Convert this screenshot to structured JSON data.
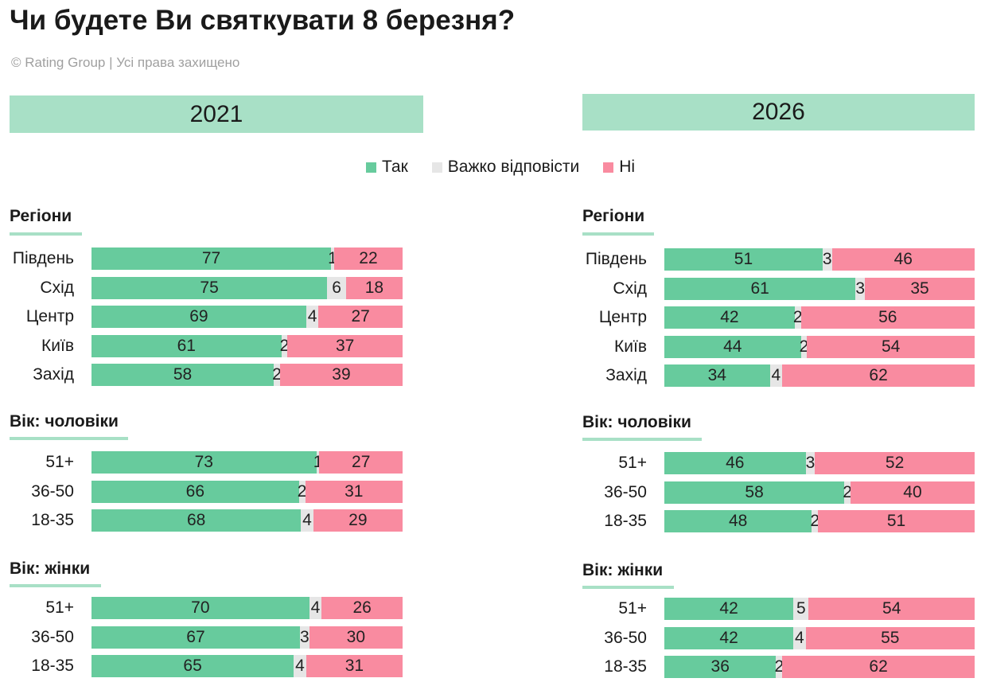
{
  "title": "Чи будете Ви святкувати 8 березня?",
  "subtitle": "© Rating Group | Усі права захищено",
  "colors": {
    "yes": "#67cb9d",
    "hard": "#e6e6e6",
    "no": "#f98ba0",
    "banner": "#a8e0c6"
  },
  "legend": [
    {
      "key": "yes",
      "label": "Так"
    },
    {
      "key": "hard",
      "label": "Важко відповісти"
    },
    {
      "key": "no",
      "label": "Ні"
    }
  ],
  "chart_data": [
    {
      "type": "bar",
      "title": "2021",
      "series_names": [
        "Так",
        "Важко відповісти",
        "Ні"
      ],
      "groups": [
        {
          "name": "Регіони",
          "rows": [
            {
              "label": "Південь",
              "values": [
                77,
                1,
                22
              ]
            },
            {
              "label": "Схід",
              "values": [
                75,
                6,
                18
              ]
            },
            {
              "label": "Центр",
              "values": [
                69,
                4,
                27
              ]
            },
            {
              "label": "Київ",
              "values": [
                61,
                2,
                37
              ]
            },
            {
              "label": "Захід",
              "values": [
                58,
                2,
                39
              ]
            }
          ]
        },
        {
          "name": "Вік: чоловіки",
          "rows": [
            {
              "label": "51+",
              "values": [
                73,
                1,
                27
              ]
            },
            {
              "label": "36-50",
              "values": [
                66,
                2,
                31
              ]
            },
            {
              "label": "18-35",
              "values": [
                68,
                4,
                29
              ]
            }
          ]
        },
        {
          "name": "Вік: жінки",
          "rows": [
            {
              "label": "51+",
              "values": [
                70,
                4,
                26
              ]
            },
            {
              "label": "36-50",
              "values": [
                67,
                3,
                30
              ]
            },
            {
              "label": "18-35",
              "values": [
                65,
                4,
                31
              ]
            }
          ]
        }
      ]
    },
    {
      "type": "bar",
      "title": "2026",
      "series_names": [
        "Так",
        "Важко відповісти",
        "Ні"
      ],
      "groups": [
        {
          "name": "Регіони",
          "rows": [
            {
              "label": "Південь",
              "values": [
                51,
                3,
                46
              ]
            },
            {
              "label": "Схід",
              "values": [
                61,
                3,
                35
              ]
            },
            {
              "label": "Центр",
              "values": [
                42,
                2,
                56
              ]
            },
            {
              "label": "Київ",
              "values": [
                44,
                2,
                54
              ]
            },
            {
              "label": "Захід",
              "values": [
                34,
                4,
                62
              ]
            }
          ]
        },
        {
          "name": "Вік: чоловіки",
          "rows": [
            {
              "label": "51+",
              "values": [
                46,
                3,
                52
              ]
            },
            {
              "label": "36-50",
              "values": [
                58,
                2,
                40
              ]
            },
            {
              "label": "18-35",
              "values": [
                48,
                2,
                51
              ]
            }
          ]
        },
        {
          "name": "Вік: жінки",
          "rows": [
            {
              "label": "51+",
              "values": [
                42,
                5,
                54
              ]
            },
            {
              "label": "36-50",
              "values": [
                42,
                4,
                55
              ]
            },
            {
              "label": "18-35",
              "values": [
                36,
                2,
                62
              ]
            }
          ]
        }
      ]
    }
  ]
}
